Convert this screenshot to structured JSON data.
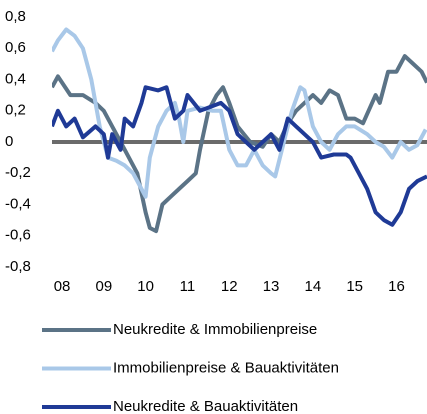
{
  "chart_data": {
    "type": "line",
    "xlim": [
      2007.76,
      2016.73
    ],
    "xticks": [
      {
        "value": 2008,
        "label": "08"
      },
      {
        "value": 2009,
        "label": "09"
      },
      {
        "value": 2010,
        "label": "10"
      },
      {
        "value": 2011,
        "label": "11"
      },
      {
        "value": 2012,
        "label": "12"
      },
      {
        "value": 2013,
        "label": "13"
      },
      {
        "value": 2014,
        "label": "14"
      },
      {
        "value": 2015,
        "label": "15"
      },
      {
        "value": 2016,
        "label": "16"
      }
    ],
    "ylim": [
      -0.8,
      0.8
    ],
    "yticks": [
      {
        "value": 0.8,
        "label": "0,8"
      },
      {
        "value": 0.6,
        "label": "0,6"
      },
      {
        "value": 0.4,
        "label": "0,4"
      },
      {
        "value": 0.2,
        "label": "0,2"
      },
      0,
      {
        "value": -0.2,
        "label": "-0,2"
      },
      {
        "value": -0.4,
        "label": "-0,4"
      },
      {
        "value": -0.6,
        "label": "-0,6"
      },
      {
        "value": -0.8,
        "label": "-0,8"
      }
    ],
    "grid": false,
    "legend": "bottom",
    "series": [
      {
        "name": "Neukredite & Immobilienpreise",
        "color": "#5b7386",
        "x": [
          2007.76,
          2007.9,
          2008.2,
          2008.5,
          2008.8,
          2009.0,
          2009.2,
          2009.4,
          2009.6,
          2009.8,
          2010.0,
          2010.1,
          2010.25,
          2010.4,
          2010.6,
          2010.8,
          2011.0,
          2011.2,
          2011.3,
          2011.5,
          2011.7,
          2011.85,
          2012.0,
          2012.2,
          2012.5,
          2012.8,
          2013.0,
          2013.2,
          2013.4,
          2013.6,
          2013.8,
          2014.0,
          2014.2,
          2014.4,
          2014.6,
          2014.8,
          2015.0,
          2015.2,
          2015.5,
          2015.6,
          2015.8,
          2016.0,
          2016.2,
          2016.4,
          2016.6,
          2016.73
        ],
        "values": [
          0.35,
          0.42,
          0.3,
          0.3,
          0.25,
          0.2,
          0.1,
          0.0,
          -0.1,
          -0.2,
          -0.45,
          -0.55,
          -0.57,
          -0.4,
          -0.35,
          -0.3,
          -0.25,
          -0.2,
          -0.05,
          0.2,
          0.3,
          0.35,
          0.25,
          0.1,
          0.0,
          -0.03,
          0.05,
          0.0,
          0.12,
          0.2,
          0.25,
          0.3,
          0.25,
          0.33,
          0.3,
          0.15,
          0.15,
          0.12,
          0.3,
          0.25,
          0.45,
          0.45,
          0.55,
          0.5,
          0.45,
          0.38
        ]
      },
      {
        "name": "Immobilienpreise & Bauaktivitäten",
        "color": "#a9c8e8",
        "x": [
          2007.76,
          2007.9,
          2008.1,
          2008.3,
          2008.5,
          2008.7,
          2008.9,
          2009.1,
          2009.3,
          2009.5,
          2009.7,
          2009.9,
          2010.0,
          2010.1,
          2010.3,
          2010.5,
          2010.7,
          2010.8,
          2010.9,
          2011.0,
          2011.3,
          2011.6,
          2011.8,
          2012.0,
          2012.2,
          2012.4,
          2012.6,
          2012.8,
          2013.0,
          2013.1,
          2013.4,
          2013.5,
          2013.7,
          2013.8,
          2014.0,
          2014.2,
          2014.4,
          2014.6,
          2014.8,
          2015.0,
          2015.3,
          2015.5,
          2015.7,
          2015.9,
          2016.1,
          2016.3,
          2016.5,
          2016.7
        ],
        "values": [
          0.58,
          0.65,
          0.72,
          0.68,
          0.6,
          0.4,
          0.1,
          -0.1,
          -0.12,
          -0.15,
          -0.2,
          -0.3,
          -0.35,
          -0.1,
          0.1,
          0.2,
          0.25,
          0.15,
          0.0,
          0.2,
          0.22,
          0.2,
          0.2,
          -0.05,
          -0.15,
          -0.15,
          -0.05,
          -0.15,
          -0.2,
          -0.22,
          0.1,
          0.2,
          0.35,
          0.33,
          0.1,
          0.0,
          -0.05,
          0.05,
          0.1,
          0.1,
          0.05,
          0.0,
          -0.03,
          -0.1,
          0.0,
          -0.05,
          -0.02,
          0.08
        ]
      },
      {
        "name": "Neukredite & Bauaktivitäten",
        "color": "#1f3a96",
        "x": [
          2007.76,
          2007.9,
          2008.1,
          2008.3,
          2008.5,
          2008.8,
          2009.0,
          2009.1,
          2009.2,
          2009.4,
          2009.5,
          2009.7,
          2009.9,
          2010.0,
          2010.3,
          2010.5,
          2010.7,
          2010.9,
          2011.0,
          2011.3,
          2011.5,
          2011.8,
          2012.0,
          2012.2,
          2012.4,
          2012.6,
          2012.8,
          2013.0,
          2013.2,
          2013.4,
          2013.6,
          2013.8,
          2014.0,
          2014.2,
          2014.5,
          2014.8,
          2014.9,
          2015.1,
          2015.3,
          2015.5,
          2015.7,
          2015.9,
          2016.1,
          2016.3,
          2016.5,
          2016.73
        ],
        "values": [
          0.1,
          0.2,
          0.1,
          0.15,
          0.03,
          0.1,
          0.05,
          -0.1,
          0.05,
          -0.05,
          0.15,
          0.1,
          0.25,
          0.35,
          0.33,
          0.35,
          0.15,
          0.2,
          0.3,
          0.2,
          0.22,
          0.25,
          0.2,
          0.05,
          0.0,
          -0.05,
          0.0,
          0.05,
          -0.05,
          0.15,
          0.1,
          0.05,
          0.0,
          -0.1,
          -0.08,
          -0.08,
          -0.1,
          -0.2,
          -0.3,
          -0.45,
          -0.5,
          -0.53,
          -0.45,
          -0.3,
          -0.25,
          -0.22
        ]
      }
    ]
  }
}
